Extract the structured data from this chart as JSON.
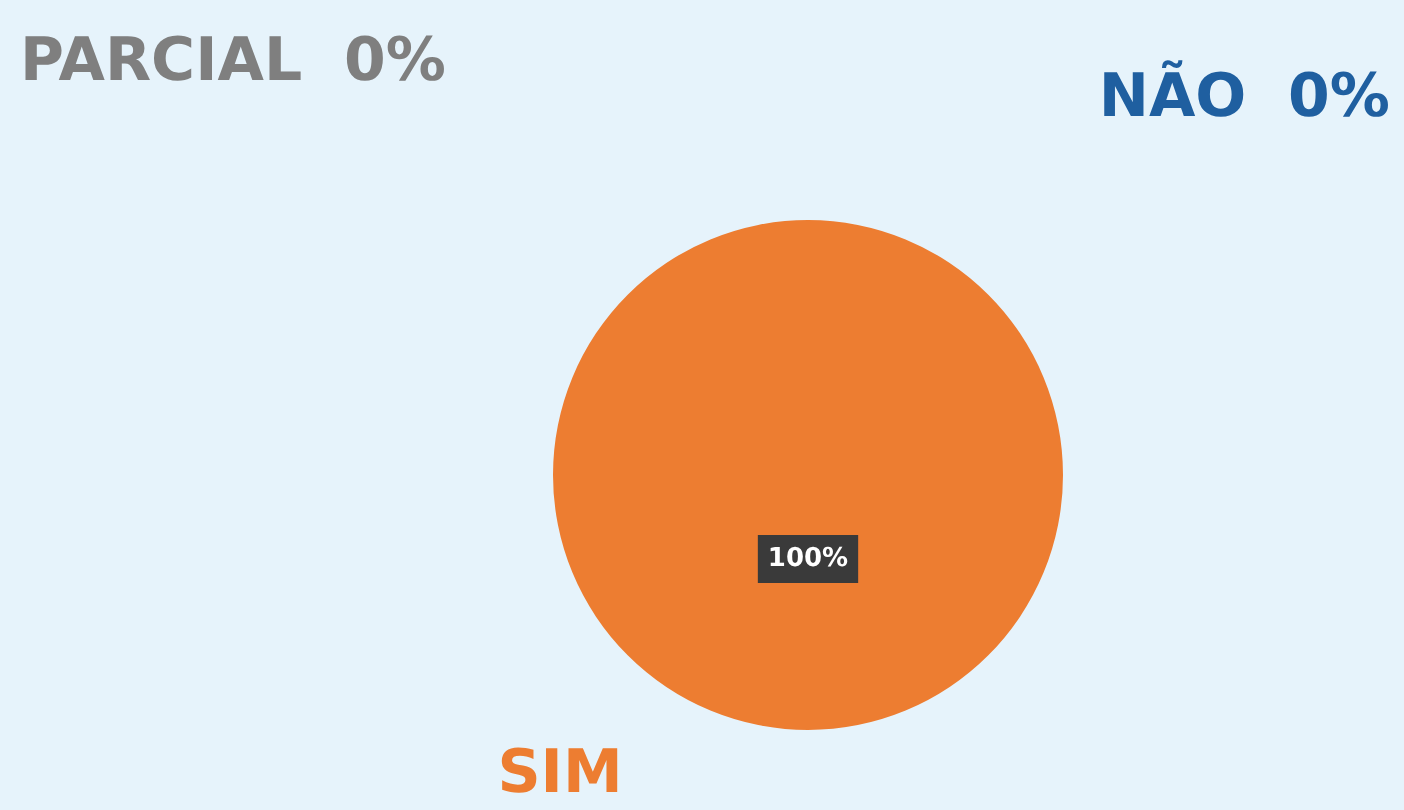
{
  "chart_data": {
    "type": "pie",
    "categories": [
      "SIM",
      "NÃO",
      "PARCIAL"
    ],
    "values": [
      100,
      0,
      0
    ],
    "colors": [
      "#ed7d31",
      "#1f5fa0",
      "#7f7f7f"
    ],
    "value_labels": [
      "100%",
      "0%",
      "0%"
    ],
    "legend": false
  }
}
